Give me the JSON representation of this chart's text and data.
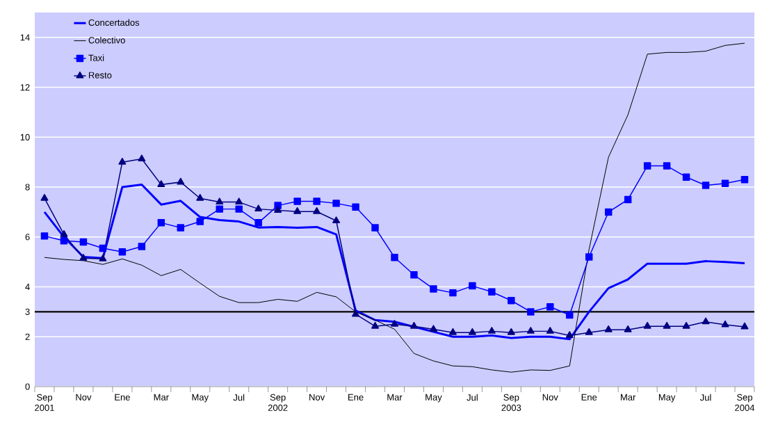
{
  "chart_data": {
    "type": "line",
    "categories": [
      "Sep 2001",
      null,
      "Nov",
      null,
      "Ene",
      null,
      "Mar",
      null,
      "May",
      null,
      "Jul",
      null,
      "Sep 2002",
      null,
      "Nov",
      null,
      "Ene",
      null,
      "Mar",
      null,
      "May",
      null,
      "Jul",
      null,
      "Sep 2003",
      null,
      "Nov",
      null,
      "Ene",
      null,
      "Mar",
      null,
      "May",
      null,
      "Jul",
      null,
      "Sep 2004"
    ],
    "series": [
      {
        "name": "Concertados",
        "color": "#0000ff",
        "marker": "none",
        "values": [
          7.0,
          6.0,
          5.2,
          5.15,
          8.0,
          8.1,
          7.3,
          7.45,
          6.8,
          6.68,
          6.62,
          6.38,
          6.4,
          6.37,
          6.4,
          6.1,
          3.05,
          2.67,
          2.6,
          2.4,
          2.2,
          2.0,
          2.0,
          2.05,
          1.95,
          2.0,
          2.0,
          1.9,
          3.0,
          3.95,
          4.3,
          4.93,
          4.93,
          4.93,
          5.03,
          5.0,
          4.95
        ]
      },
      {
        "name": "Colectivo",
        "color": "#000000",
        "marker": "none",
        "values": [
          5.18,
          5.1,
          5.05,
          4.9,
          5.12,
          4.87,
          4.45,
          4.7,
          4.15,
          3.62,
          3.37,
          3.37,
          3.5,
          3.42,
          3.78,
          3.6,
          3.0,
          2.67,
          2.3,
          1.33,
          1.03,
          0.83,
          0.8,
          0.67,
          0.58,
          0.67,
          0.65,
          0.83,
          5.5,
          9.2,
          10.9,
          13.33,
          13.4,
          13.4,
          13.45,
          13.68,
          13.77
        ]
      },
      {
        "name": "Taxi",
        "color": "#0000ff",
        "marker": "square",
        "values": [
          6.04,
          5.85,
          5.8,
          5.55,
          5.4,
          5.62,
          6.57,
          6.37,
          6.62,
          7.12,
          7.12,
          6.57,
          7.26,
          7.43,
          7.43,
          7.35,
          7.2,
          6.37,
          5.18,
          4.48,
          3.92,
          3.76,
          4.04,
          3.8,
          3.45,
          3.0,
          3.2,
          2.87,
          5.2,
          7.0,
          7.5,
          8.85,
          8.85,
          8.4,
          8.07,
          8.15,
          8.3
        ]
      },
      {
        "name": "Resto",
        "color": "#000080",
        "marker": "triangle",
        "values": [
          7.55,
          6.1,
          5.15,
          5.12,
          9.0,
          9.13,
          8.1,
          8.2,
          7.55,
          7.4,
          7.4,
          7.12,
          7.07,
          7.02,
          7.02,
          6.65,
          2.9,
          2.42,
          2.5,
          2.42,
          2.3,
          2.17,
          2.17,
          2.22,
          2.17,
          2.22,
          2.22,
          2.05,
          2.17,
          2.28,
          2.28,
          2.42,
          2.42,
          2.42,
          2.6,
          2.48,
          2.4
        ]
      }
    ],
    "ylim": [
      0,
      15
    ],
    "yticks": [
      0,
      2,
      3,
      4,
      6,
      8,
      10,
      12,
      14
    ],
    "grid": "y",
    "legend": "top left",
    "ref_lines": [
      {
        "axis": "y",
        "value": 3,
        "color": "#000000"
      }
    ]
  }
}
